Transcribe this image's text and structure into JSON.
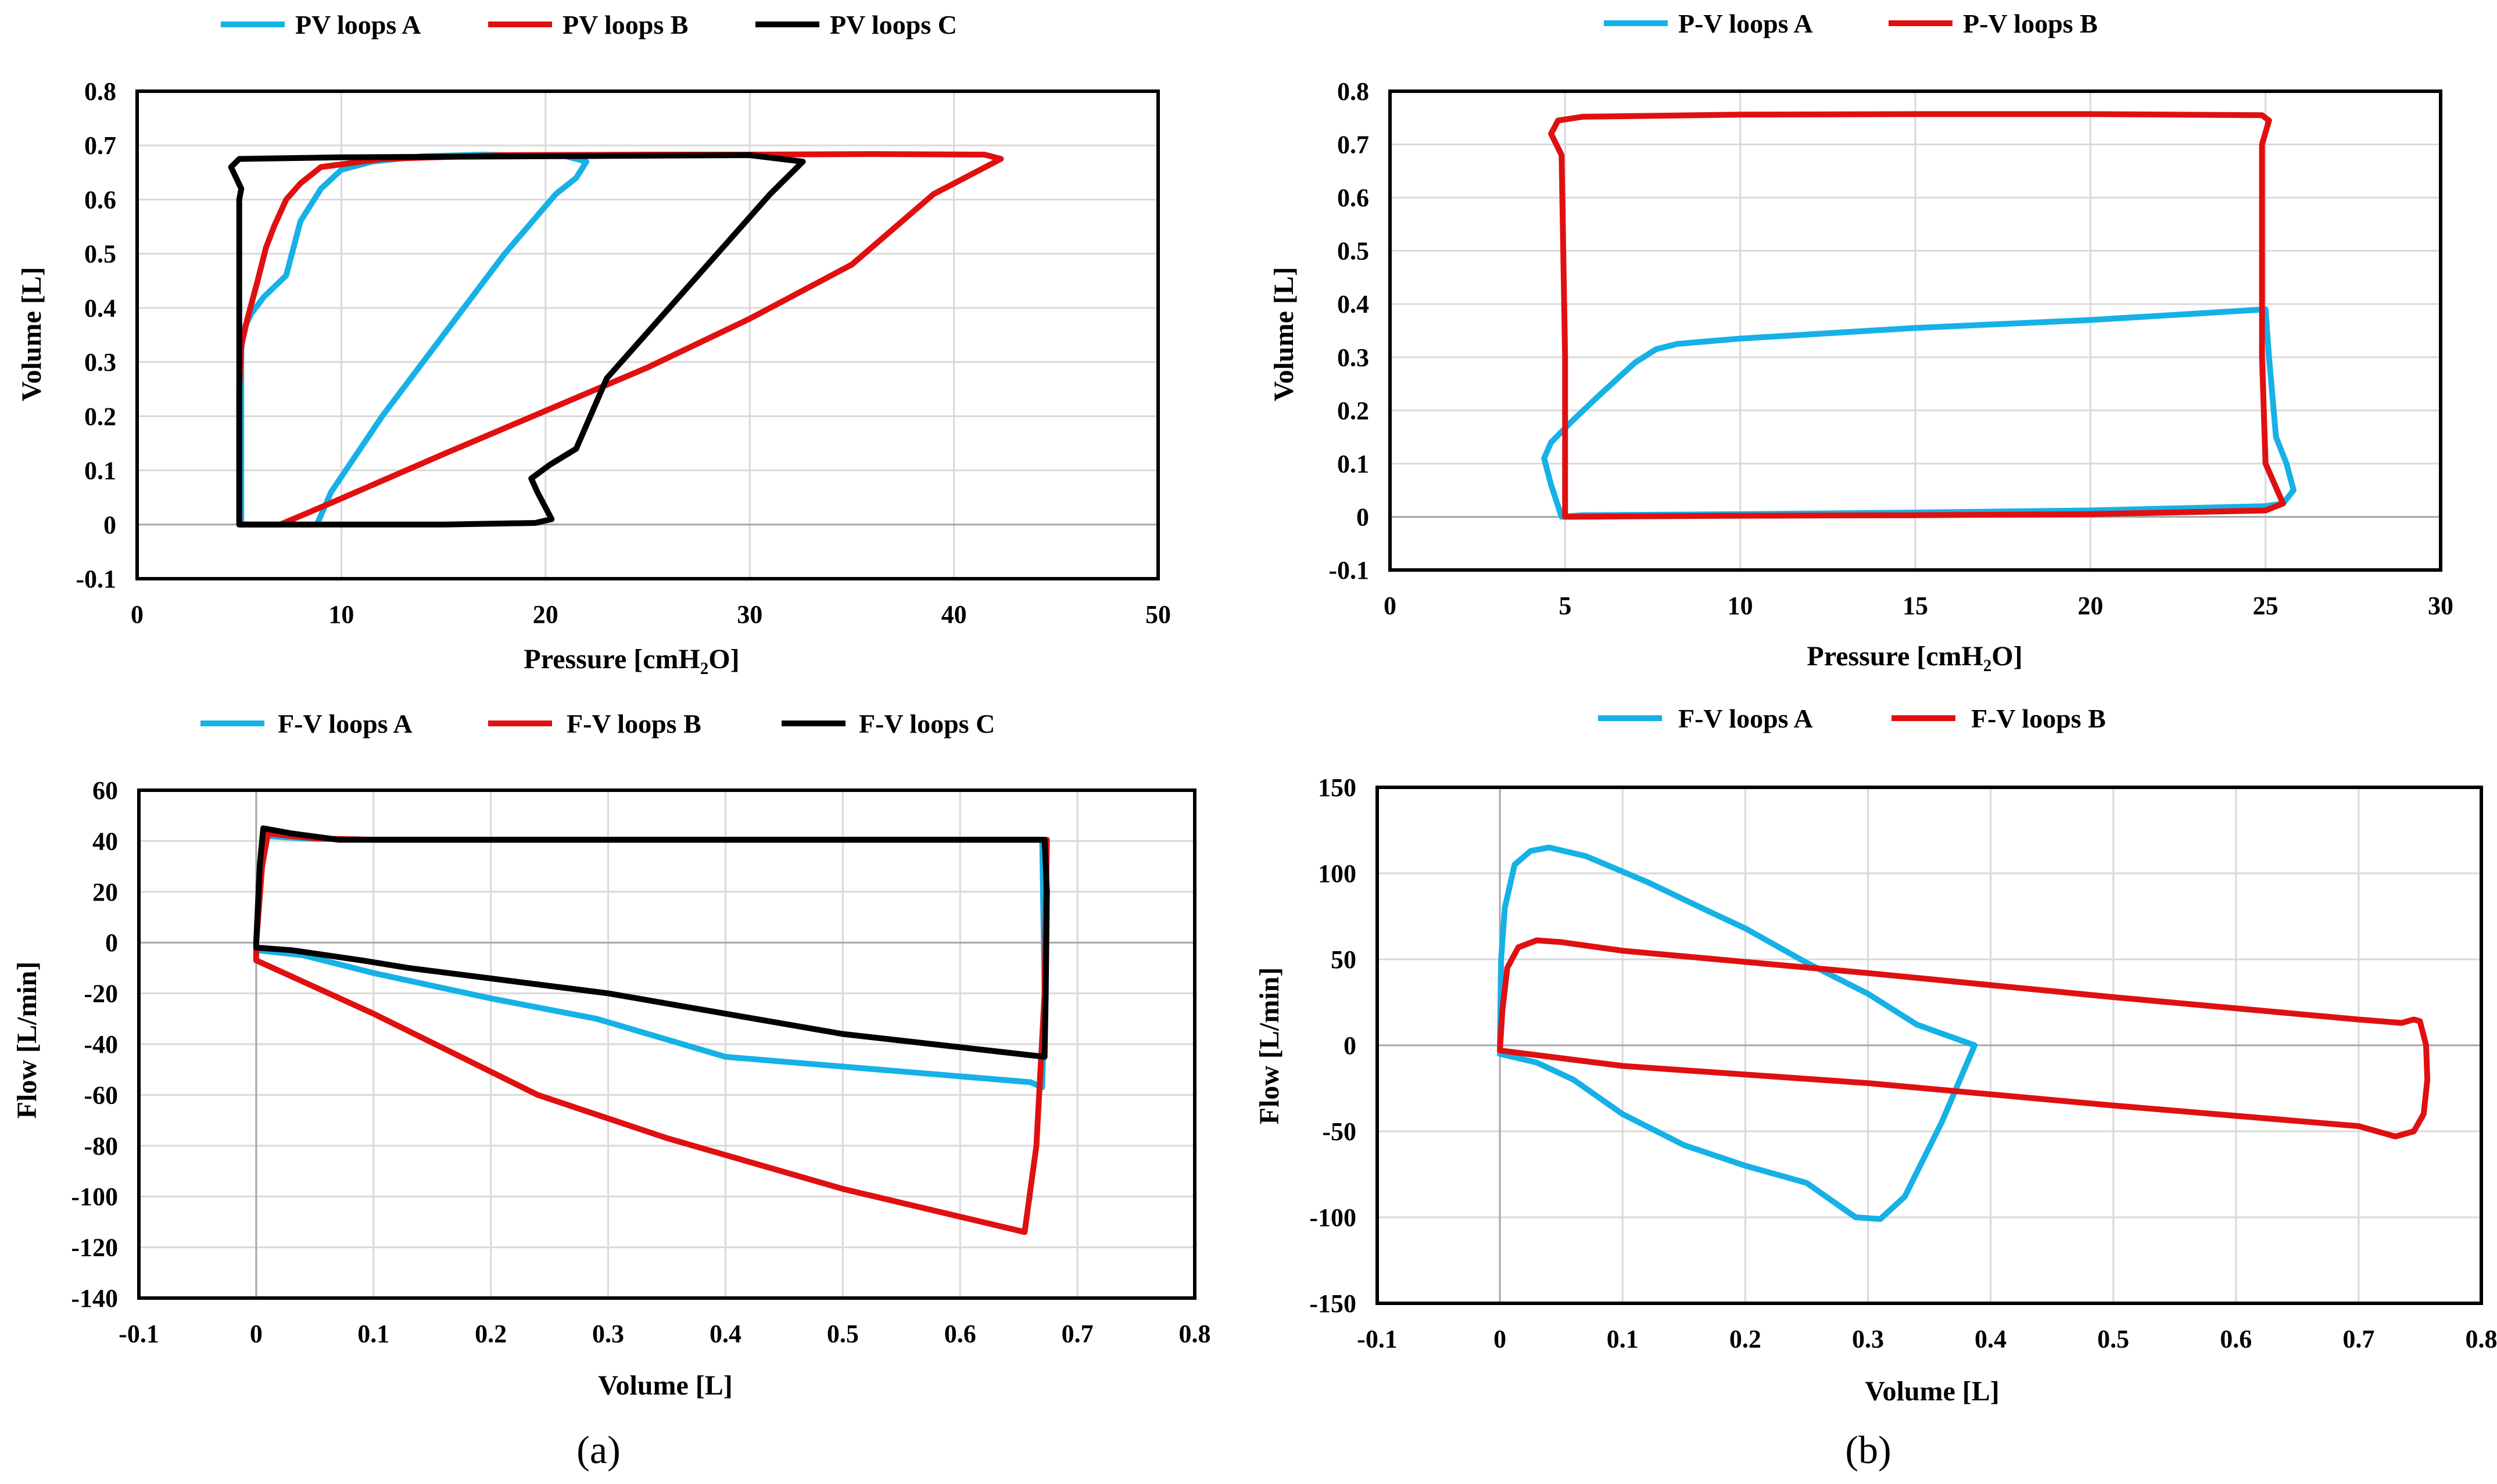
{
  "colors": {
    "A": "#16b1e6",
    "B": "#e01010",
    "C": "#000000",
    "grid": "#d9d9d9",
    "zero": "#a6a6a6"
  },
  "panel_labels": [
    "(a)",
    "(b)"
  ],
  "chart_data": [
    {
      "id": "pv_a",
      "type": "line",
      "title": "",
      "xlabel": "Pressure [cmH₂O]",
      "ylabel": "Volume [L]",
      "xlim": [
        0,
        50
      ],
      "ylim": [
        -0.1,
        0.8
      ],
      "xticks": [
        0,
        10,
        20,
        30,
        40,
        50
      ],
      "yticks": [
        -0.1,
        0,
        0.1,
        0.2,
        0.3,
        0.4,
        0.5,
        0.6,
        0.7,
        0.8
      ],
      "xtick_labels": [
        "0",
        "10",
        "20",
        "30",
        "40",
        "50"
      ],
      "ytick_labels": [
        "-0.1",
        "0",
        "0.1",
        "0.2",
        "0.3",
        "0.4",
        "0.5",
        "0.6",
        "0.7",
        "0.8"
      ],
      "legend": "top",
      "series": [
        {
          "name": "PV loops A",
          "color": "A",
          "x": [
            8.8,
            9.5,
            12,
            15,
            18,
            20.5,
            21.5,
            22,
            21,
            17,
            14,
            11.5,
            10,
            9,
            8,
            7.3,
            6.2,
            5.6,
            5.2,
            5.1,
            5.1,
            5.1,
            5.5,
            6.5,
            8,
            8.8
          ],
          "y": [
            0.0,
            0.06,
            0.2,
            0.35,
            0.5,
            0.61,
            0.64,
            0.67,
            0.68,
            0.683,
            0.68,
            0.67,
            0.655,
            0.62,
            0.56,
            0.46,
            0.42,
            0.39,
            0.36,
            0.32,
            0.18,
            0.0,
            0.0,
            0.0,
            0.0,
            0.0
          ]
        },
        {
          "name": "PV loops B",
          "color": "B",
          "x": [
            7,
            9.5,
            15,
            20,
            25,
            30,
            35,
            39,
            42.3,
            41.5,
            36,
            30,
            25,
            18,
            12,
            9,
            8,
            7.3,
            6.7,
            6.3,
            5.9,
            5.4,
            5.1,
            5.0,
            5.0,
            5.3,
            6,
            7
          ],
          "y": [
            0.0,
            0.04,
            0.13,
            0.21,
            0.29,
            0.38,
            0.48,
            0.61,
            0.675,
            0.683,
            0.684,
            0.683,
            0.683,
            0.682,
            0.675,
            0.66,
            0.63,
            0.6,
            0.55,
            0.51,
            0.45,
            0.38,
            0.33,
            0.25,
            0.0,
            0.0,
            0.0,
            0.0
          ]
        },
        {
          "name": "PV loops C",
          "color": "C",
          "x": [
            5.0,
            5.0,
            5.0,
            5.1,
            4.6,
            5.0,
            10,
            20,
            30,
            32.6,
            31,
            27,
            23,
            21.5,
            20.2,
            19.3,
            19.6,
            20.3,
            19.5,
            15,
            10,
            7,
            5.0
          ],
          "y": [
            0.0,
            0.3,
            0.6,
            0.62,
            0.66,
            0.675,
            0.678,
            0.68,
            0.682,
            0.67,
            0.61,
            0.44,
            0.27,
            0.14,
            0.11,
            0.085,
            0.06,
            0.01,
            0.003,
            0.0,
            0.0,
            0.0,
            0.0
          ]
        }
      ]
    },
    {
      "id": "pv_b",
      "type": "line",
      "title": "",
      "xlabel": "Pressure [cmH₂O]",
      "ylabel": "Volume [L]",
      "xlim": [
        0,
        30
      ],
      "ylim": [
        -0.1,
        0.8
      ],
      "xticks": [
        0,
        5,
        10,
        15,
        20,
        25,
        30
      ],
      "yticks": [
        -0.1,
        0,
        0.1,
        0.2,
        0.3,
        0.4,
        0.5,
        0.6,
        0.7,
        0.8
      ],
      "xtick_labels": [
        "0",
        "5",
        "10",
        "15",
        "20",
        "25",
        "30"
      ],
      "ytick_labels": [
        "-0.1",
        "0",
        "0.1",
        "0.2",
        "0.3",
        "0.4",
        "0.5",
        "0.6",
        "0.7",
        "0.8"
      ],
      "legend": "top",
      "series": [
        {
          "name": "P-V loops A",
          "color": "A",
          "x": [
            4.9,
            4.6,
            4.4,
            4.6,
            5.2,
            6.0,
            7.0,
            7.6,
            8.2,
            10,
            15,
            20,
            25.0,
            25.1,
            25.3,
            25.6,
            25.8,
            25.5,
            25,
            20,
            15,
            10,
            5.5,
            4.9
          ],
          "y": [
            0.0,
            0.06,
            0.11,
            0.14,
            0.18,
            0.23,
            0.29,
            0.315,
            0.325,
            0.335,
            0.355,
            0.37,
            0.39,
            0.3,
            0.15,
            0.1,
            0.05,
            0.025,
            0.02,
            0.012,
            0.008,
            0.005,
            0.003,
            0.0
          ]
        },
        {
          "name": "P-V loops B",
          "color": "B",
          "x": [
            5.0,
            5.0,
            4.9,
            4.6,
            4.8,
            5.5,
            10,
            15,
            20,
            24.9,
            25.1,
            24.9,
            24.9,
            25.0,
            25.5,
            25.0,
            20,
            15,
            10,
            5.0
          ],
          "y": [
            0.0,
            0.3,
            0.68,
            0.72,
            0.745,
            0.752,
            0.756,
            0.757,
            0.757,
            0.755,
            0.745,
            0.7,
            0.3,
            0.1,
            0.025,
            0.012,
            0.005,
            0.003,
            0.002,
            0.0
          ]
        }
      ]
    },
    {
      "id": "fv_a",
      "type": "line",
      "title": "",
      "xlabel": "Volume [L]",
      "ylabel": "Flow [L/min]",
      "xlim": [
        -0.1,
        0.8
      ],
      "ylim": [
        -140,
        60
      ],
      "xticks": [
        -0.1,
        0,
        0.1,
        0.2,
        0.3,
        0.4,
        0.5,
        0.6,
        0.7,
        0.8
      ],
      "yticks": [
        -140,
        -120,
        -100,
        -80,
        -60,
        -40,
        -20,
        0,
        20,
        40,
        60
      ],
      "xtick_labels": [
        "-0.1",
        "0",
        "0.1",
        "0.2",
        "0.3",
        "0.4",
        "0.5",
        "0.6",
        "0.7",
        "0.8"
      ],
      "ytick_labels": [
        "-140",
        "-120",
        "-100",
        "-80",
        "-60",
        "-40",
        "-20",
        "0",
        "20",
        "40",
        "60"
      ],
      "legend": "top",
      "series": [
        {
          "name": "F-V loops A",
          "color": "A",
          "x": [
            0.0,
            0.005,
            0.008,
            0.04,
            0.1,
            0.2,
            0.4,
            0.5,
            0.6,
            0.67,
            0.672,
            0.67,
            0.66,
            0.4,
            0.29,
            0.2,
            0.1,
            0.04,
            0.0,
            0.0
          ],
          "y": [
            0,
            30,
            42,
            41,
            40.5,
            40.5,
            40.5,
            40.5,
            40.5,
            40.5,
            -20,
            -57,
            -55,
            -45,
            -30,
            -22,
            -12,
            -5,
            -3,
            0
          ]
        },
        {
          "name": "F-V loops B",
          "color": "B",
          "x": [
            0.0,
            0.005,
            0.01,
            0.05,
            0.1,
            0.3,
            0.5,
            0.674,
            0.672,
            0.665,
            0.655,
            0.5,
            0.35,
            0.24,
            0.1,
            0.0,
            0.0
          ],
          "y": [
            0,
            30,
            43,
            41,
            40.5,
            40.5,
            40.5,
            40.5,
            -20,
            -80,
            -114,
            -97,
            -77,
            -60,
            -28,
            -7,
            0
          ]
        },
        {
          "name": "F-V loops C",
          "color": "C",
          "x": [
            0.0,
            0.003,
            0.006,
            0.03,
            0.07,
            0.1,
            0.3,
            0.5,
            0.672,
            0.674,
            0.673,
            0.672,
            0.5,
            0.3,
            0.13,
            0.09,
            0.03,
            0.0,
            0.0
          ],
          "y": [
            0,
            30,
            45,
            43,
            40.5,
            40.5,
            40.5,
            40.5,
            40.5,
            20,
            -20,
            -45,
            -36,
            -20,
            -10,
            -7,
            -3,
            -2,
            0
          ]
        }
      ]
    },
    {
      "id": "fv_b",
      "type": "line",
      "title": "",
      "xlabel": "Volume [L]",
      "ylabel": "Flow [L/min]",
      "xlim": [
        -0.1,
        0.8
      ],
      "ylim": [
        -150,
        150
      ],
      "xticks": [
        -0.1,
        0,
        0.1,
        0.2,
        0.3,
        0.4,
        0.5,
        0.6,
        0.7,
        0.8
      ],
      "yticks": [
        -150,
        -100,
        -50,
        0,
        50,
        100,
        150
      ],
      "xtick_labels": [
        "-0.1",
        "0",
        "0.1",
        "0.2",
        "0.3",
        "0.4",
        "0.5",
        "0.6",
        "0.7",
        "0.8"
      ],
      "ytick_labels": [
        "-150",
        "-100",
        "-50",
        "0",
        "50",
        "100",
        "150"
      ],
      "legend": "top",
      "series": [
        {
          "name": "F-V loops A",
          "color": "A",
          "x": [
            0.0,
            0.001,
            0.004,
            0.012,
            0.025,
            0.04,
            0.07,
            0.12,
            0.17,
            0.2,
            0.25,
            0.3,
            0.34,
            0.387,
            0.36,
            0.33,
            0.31,
            0.29,
            0.25,
            0.2,
            0.15,
            0.1,
            0.06,
            0.03,
            0.0,
            0.0
          ],
          "y": [
            0,
            50,
            80,
            105,
            113,
            115,
            110,
            95,
            78,
            68,
            48,
            30,
            12,
            0,
            -45,
            -88,
            -101,
            -100,
            -80,
            -70,
            -58,
            -40,
            -20,
            -10,
            -5,
            0
          ]
        },
        {
          "name": "F-V loops B",
          "color": "B",
          "x": [
            0.0,
            0.002,
            0.006,
            0.015,
            0.03,
            0.05,
            0.1,
            0.3,
            0.5,
            0.7,
            0.735,
            0.745,
            0.75,
            0.755,
            0.756,
            0.753,
            0.745,
            0.73,
            0.7,
            0.5,
            0.3,
            0.1,
            0.0
          ],
          "y": [
            -3,
            20,
            45,
            57,
            61,
            60,
            55,
            42,
            28,
            15,
            13,
            15,
            14,
            0,
            -20,
            -40,
            -50,
            -53,
            -47,
            -35,
            -22,
            -12,
            -3
          ]
        }
      ]
    }
  ]
}
